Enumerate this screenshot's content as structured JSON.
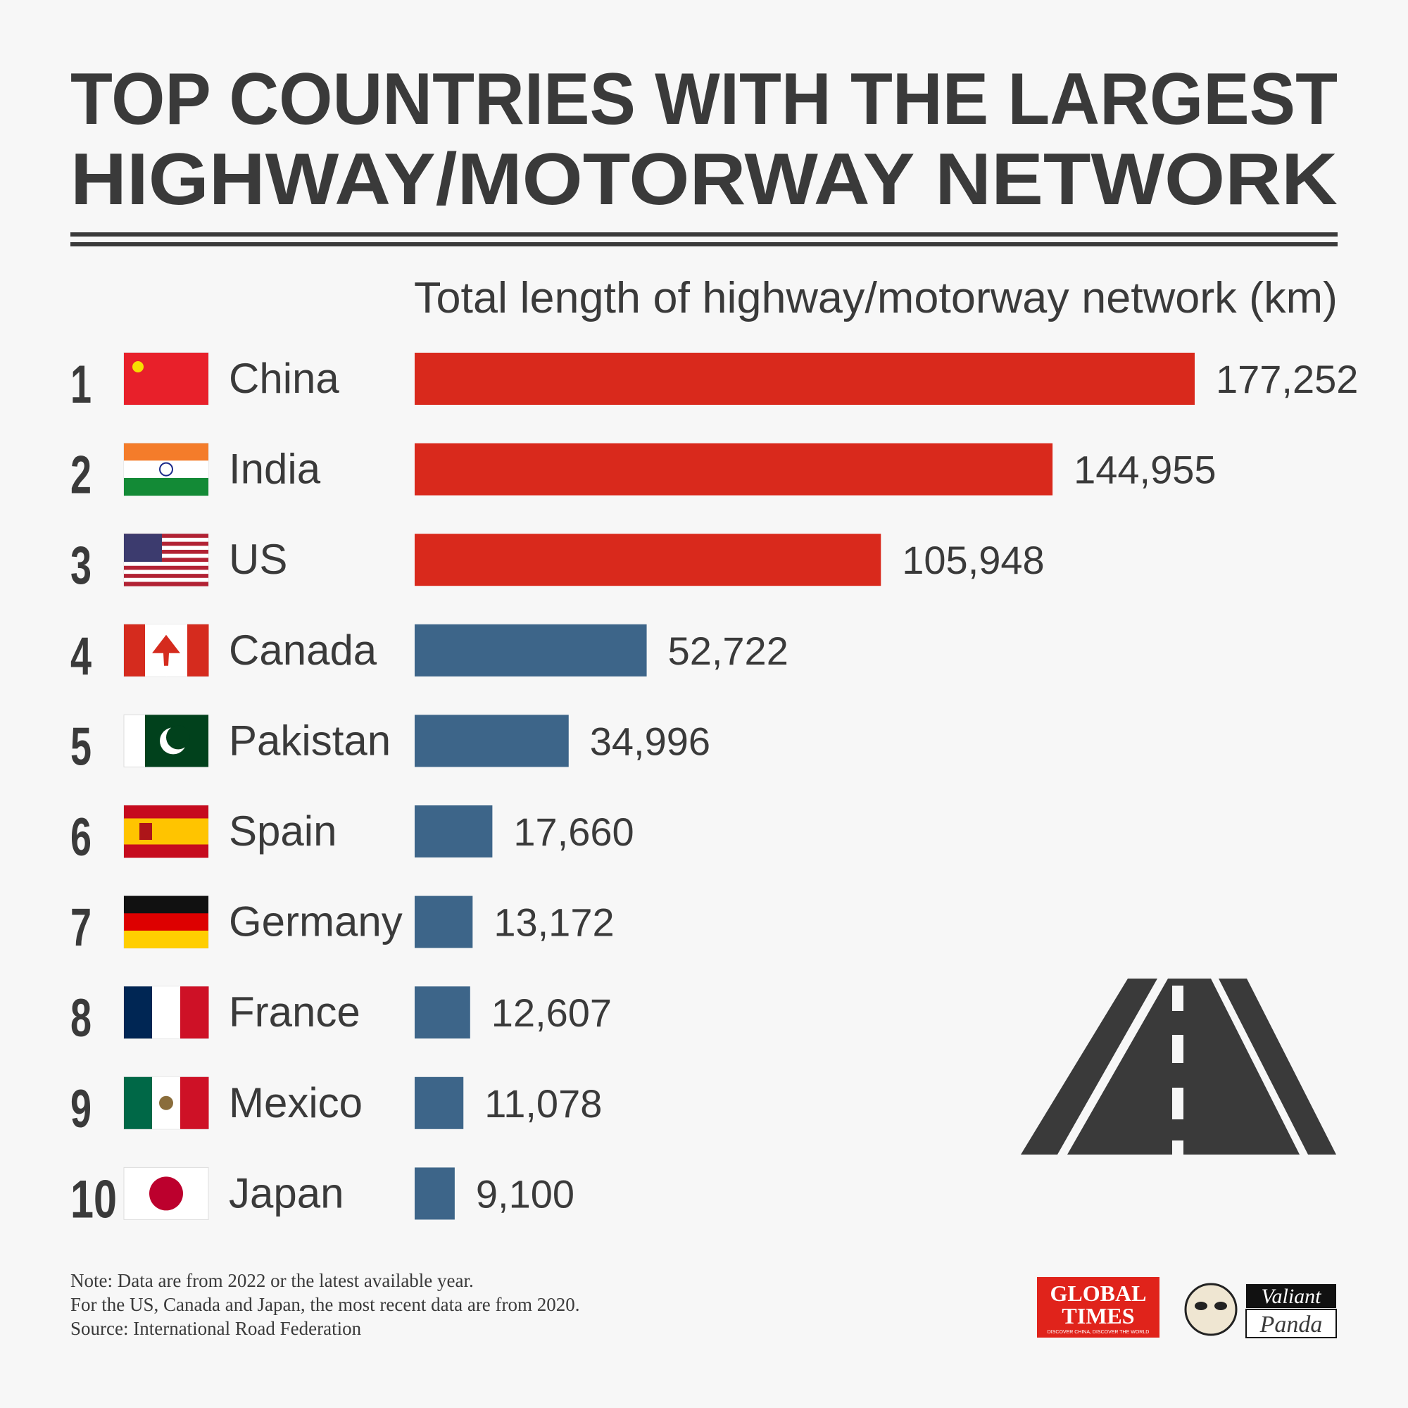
{
  "chart_data": {
    "type": "hbar",
    "title": [
      "TOP COUNTRIES WITH THE LARGEST",
      "HIGHWAY/MOTORWAY NETWORK"
    ],
    "subtitle": "Total length of highway/motorway network (km)",
    "ranks": [
      1,
      2,
      3,
      4,
      5,
      6,
      7,
      8,
      9,
      10
    ],
    "categories": [
      "China",
      "India",
      "US",
      "Canada",
      "Pakistan",
      "Spain",
      "Germany",
      "France",
      "Mexico",
      "Japan"
    ],
    "values": [
      177252,
      144955,
      105948,
      52722,
      34996,
      17660,
      13172,
      12607,
      11078,
      9100
    ],
    "value_labels": [
      "177,252",
      "144,955",
      "105,948",
      "52,722",
      "34,996",
      "17,660",
      "13,172",
      "12,607",
      "11,078",
      "9,100"
    ],
    "colors": [
      "#d9291c",
      "#d9291c",
      "#d9291c",
      "#3d6589",
      "#3d6589",
      "#3d6589",
      "#3d6589",
      "#3d6589",
      "#3d6589",
      "#3d6589"
    ],
    "notes": [
      "Note: Data are from 2022 or the latest available year.",
      "For the US, Canada and Japan, the most recent data are from 2020.",
      "Source: International Road Federation"
    ],
    "logos": {
      "global_times": [
        "GLOBAL",
        "TIMES"
      ],
      "global_times_tagline": "DISCOVER CHINA, DISCOVER THE WORLD",
      "valiant_panda": [
        "Valiant",
        "Panda"
      ]
    }
  }
}
